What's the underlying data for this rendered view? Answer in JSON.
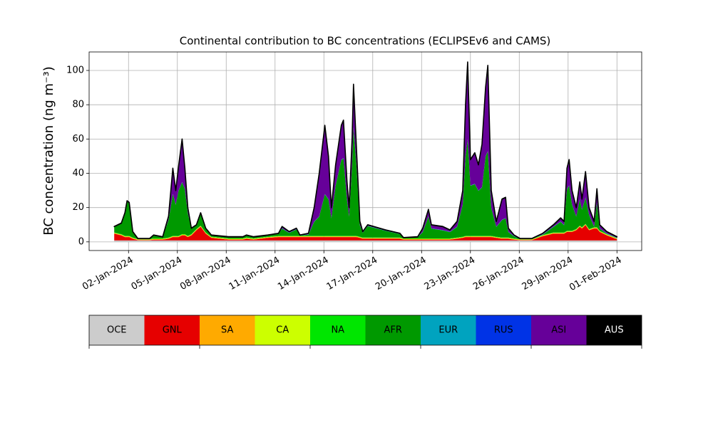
{
  "chart_data": {
    "type": "stacked_area",
    "title": "Continental contribution to BC concentrations (ECLIPSEv6 and CAMS)",
    "y_label": "BC concentration (ng m⁻³)",
    "grid": true,
    "xlim": [
      -0.42,
      33.52
    ],
    "ylim": [
      -5.05,
      110.8
    ],
    "yticks": [
      0,
      20,
      40,
      60,
      80,
      100
    ],
    "xticks": [
      {
        "value": 2,
        "label": "02-Jan-2024"
      },
      {
        "value": 5,
        "label": "05-Jan-2024"
      },
      {
        "value": 8,
        "label": "08-Jan-2024"
      },
      {
        "value": 11,
        "label": "11-Jan-2024"
      },
      {
        "value": 14,
        "label": "14-Jan-2024"
      },
      {
        "value": 17,
        "label": "17-Jan-2024"
      },
      {
        "value": 20,
        "label": "20-Jan-2024"
      },
      {
        "value": 23,
        "label": "23-Jan-2024"
      },
      {
        "value": 26,
        "label": "26-Jan-2024"
      },
      {
        "value": 29,
        "label": "29-Jan-2024"
      },
      {
        "value": 32,
        "label": "01-Feb-2024"
      }
    ],
    "x": [
      1.12,
      1.56,
      1.78,
      1.91,
      2.04,
      2.26,
      2.57,
      3.3,
      3.54,
      4.1,
      4.46,
      4.72,
      4.9,
      5.07,
      5.29,
      5.46,
      5.64,
      5.86,
      6.17,
      6.43,
      6.74,
      7.09,
      8.14,
      9.02,
      9.24,
      9.68,
      10.55,
      11.21,
      11.43,
      11.87,
      12.31,
      12.53,
      13.05,
      13.4,
      13.71,
      14.06,
      14.28,
      14.46,
      14.72,
      15.07,
      15.2,
      15.42,
      15.55,
      15.73,
      15.82,
      16.0,
      16.21,
      16.39,
      16.69,
      17.79,
      18.67,
      18.89,
      19.76,
      20.07,
      20.42,
      20.6,
      21.3,
      21.74,
      22.18,
      22.53,
      22.7,
      22.83,
      23.0,
      23.27,
      23.49,
      23.71,
      23.93,
      24.07,
      24.28,
      24.59,
      24.94,
      25.16,
      25.33,
      25.68,
      26.04,
      26.78,
      27.44,
      28.1,
      28.54,
      28.75,
      28.93,
      29.06,
      29.24,
      29.5,
      29.72,
      29.85,
      30.07,
      30.29,
      30.6,
      30.77,
      30.94,
      31.38,
      32
    ],
    "series": [
      {
        "name": "OCE",
        "color": "#cccccc",
        "values": [
          0.8,
          0.8,
          0.8,
          0.8,
          0.8,
          0.8,
          0.8,
          0.8,
          0.8,
          0.8,
          0.8,
          0.8,
          0.8,
          0.8,
          0.8,
          0.8,
          0.8,
          0.8,
          0.8,
          0.8,
          0.8,
          0.8,
          0.8,
          0.8,
          0.8,
          0.8,
          0.8,
          0.8,
          0.8,
          0.8,
          0.8,
          0.8,
          0.8,
          0.8,
          0.8,
          0.8,
          0.8,
          0.8,
          0.8,
          0.8,
          0.8,
          0.8,
          0.8,
          0.8,
          0.8,
          0.8,
          0.8,
          0.8,
          0.8,
          0.8,
          0.8,
          0.8,
          0.8,
          0.8,
          0.8,
          0.8,
          0.8,
          0.8,
          0.8,
          0.8,
          0.8,
          0.8,
          0.8,
          0.8,
          0.8,
          0.8,
          0.8,
          0.8,
          0.8,
          0.8,
          0.8,
          0.8,
          0.8,
          0.8,
          0.8,
          0.8,
          0.8,
          0.8,
          0.8,
          0.8,
          0.8,
          0.8,
          0.8,
          0.8,
          0.8,
          0.8,
          0.8,
          0.8,
          0.8,
          0.8,
          0.8,
          0.8,
          0.8
        ]
      },
      {
        "name": "GNL",
        "color": "#e60000",
        "values": [
          4,
          3,
          2,
          2,
          2,
          1,
          0.2,
          0.2,
          0.5,
          0.5,
          1,
          2,
          2,
          2,
          3,
          3,
          2,
          3,
          6,
          8,
          4,
          1.5,
          0.5,
          0.5,
          1,
          0.5,
          1.5,
          2,
          2,
          2,
          2,
          2,
          2,
          2,
          2,
          2,
          2,
          2,
          2,
          2,
          2,
          2,
          2,
          2,
          2,
          2,
          1.5,
          1,
          1,
          1,
          1,
          0.5,
          0.5,
          0.5,
          0.5,
          0.5,
          0.5,
          0.5,
          1,
          1.5,
          2,
          2,
          2,
          2,
          2,
          2,
          2,
          2,
          2,
          1.5,
          1,
          1,
          1,
          0.5,
          0.2,
          0.2,
          2.5,
          4,
          4,
          4,
          5,
          5,
          5,
          6,
          8,
          7,
          9,
          6,
          7,
          7,
          5,
          3,
          0.7
        ]
      },
      {
        "name": "SA",
        "color": "#ffaa00",
        "values": [
          0.3,
          0.3,
          0.3,
          0.3,
          0.3,
          0.3,
          0.3,
          0.3,
          0.3,
          0.3,
          0.3,
          0.3,
          0.3,
          0.3,
          0.3,
          0.3,
          0.3,
          0.3,
          0.3,
          0.3,
          0.3,
          0.3,
          0.3,
          0.3,
          0.3,
          0.3,
          0.3,
          0.3,
          0.3,
          0.3,
          0.3,
          0.3,
          0.3,
          0.3,
          0.3,
          0.3,
          0.3,
          0.3,
          0.3,
          0.3,
          0.3,
          0.3,
          0.3,
          0.3,
          0.3,
          0.3,
          0.3,
          0.3,
          0.3,
          0.3,
          0.3,
          0.3,
          0.3,
          0.3,
          0.3,
          0.3,
          0.3,
          0.3,
          0.3,
          0.3,
          0.3,
          0.3,
          0.3,
          0.3,
          0.3,
          0.3,
          0.3,
          0.3,
          0.3,
          0.3,
          0.3,
          0.3,
          0.3,
          0.3,
          0.3,
          0.3,
          0.3,
          0.3,
          0.3,
          0.3,
          0.3,
          0.3,
          0.3,
          0.3,
          0.3,
          0.3,
          0.3,
          0.3,
          0.3,
          0.3,
          0.3,
          0.3,
          0.3
        ]
      },
      {
        "name": "CA",
        "color": "#ccff00",
        "values": [
          0.2,
          0.2,
          0.2,
          0.2,
          0.2,
          0.2,
          0.2,
          0.2,
          0.2,
          0.2,
          0.2,
          0.2,
          0.2,
          0.2,
          0.2,
          0.2,
          0.2,
          0.2,
          0.2,
          0.2,
          0.2,
          0.2,
          0.2,
          0.2,
          0.2,
          0.2,
          0.2,
          0.2,
          0.2,
          0.2,
          0.2,
          0.2,
          0.2,
          0.2,
          0.2,
          0.2,
          0.2,
          0.2,
          0.2,
          0.2,
          0.2,
          0.2,
          0.2,
          0.2,
          0.2,
          0.2,
          0.2,
          0.2,
          0.2,
          0.2,
          0.2,
          0.2,
          0.2,
          0.2,
          0.2,
          0.2,
          0.2,
          0.2,
          0.2,
          0.2,
          0.2,
          0.2,
          0.2,
          0.2,
          0.2,
          0.2,
          0.2,
          0.2,
          0.2,
          0.2,
          0.2,
          0.2,
          0.2,
          0.2,
          0.2,
          0.2,
          0.2,
          0.2,
          0.2,
          0.2,
          0.2,
          0.2,
          0.2,
          0.2,
          0.2,
          0.2,
          0.2,
          0.2,
          0.2,
          0.2,
          0.2,
          0.2,
          0.2
        ]
      },
      {
        "name": "NA",
        "color": "#00e600",
        "values": [
          0.2,
          0.2,
          0.2,
          0.2,
          0.2,
          0.2,
          0.2,
          0.2,
          0.2,
          0.2,
          0.2,
          0.2,
          0.2,
          0.2,
          0.2,
          0.2,
          0.2,
          0.2,
          0.2,
          0.2,
          0.2,
          0.2,
          0.2,
          0.2,
          0.2,
          0.2,
          0.2,
          0.2,
          0.2,
          0.2,
          0.2,
          0.2,
          0.2,
          0.2,
          0.2,
          0.2,
          0.2,
          0.2,
          0.2,
          0.2,
          0.2,
          0.2,
          0.2,
          0.2,
          0.2,
          0.2,
          0.2,
          0.2,
          0.2,
          0.2,
          0.2,
          0.2,
          0.2,
          0.2,
          0.2,
          0.2,
          0.2,
          0.2,
          0.2,
          0.2,
          0.2,
          0.2,
          0.2,
          0.2,
          0.2,
          0.2,
          0.2,
          0.2,
          0.2,
          0.2,
          0.2,
          0.2,
          0.2,
          0.2,
          0.2,
          0.2,
          0.2,
          0.2,
          0.2,
          0.2,
          0.2,
          0.2,
          0.2,
          0.2,
          0.2,
          0.2,
          0.2,
          0.2,
          0.2,
          0.2,
          0.2,
          0.2,
          0.2
        ]
      },
      {
        "name": "AFR",
        "color": "#009900",
        "values": [
          3.2,
          6.2,
          13.2,
          20.2,
          19.2,
          3.2,
          0,
          0,
          1.7,
          0.7,
          10.2,
          24.2,
          18.2,
          26.2,
          30.2,
          26.2,
          13.2,
          3.2,
          2.2,
          7.2,
          2.2,
          0.7,
          0.7,
          0.7,
          1.2,
          0.7,
          0.7,
          1.2,
          4.2,
          1.7,
          3.7,
          0.2,
          0.7,
          8.2,
          11.2,
          24.2,
          21.2,
          10.2,
          29.2,
          44.2,
          45.2,
          21.2,
          11.2,
          41.2,
          63.2,
          41.2,
          6.7,
          2.7,
          6.7,
          3.9,
          2.0,
          0.2,
          0.7,
          3.7,
          12.7,
          5.7,
          4.7,
          3.7,
          6.2,
          18.7,
          46.2,
          56.2,
          29.2,
          30.2,
          26.2,
          28.2,
          46.2,
          49.2,
          16.2,
          5.7,
          10.2,
          11.2,
          3.2,
          1.2,
          0,
          0,
          0.2,
          3.2,
          6.2,
          4.2,
          24.2,
          26.2,
          15.2,
          7.2,
          15.2,
          10.2,
          15.2,
          8.2,
          0.2,
          14.2,
          1.2,
          0.2,
          0
        ]
      },
      {
        "name": "EUR",
        "color": "#00a3bf",
        "values": [
          0.1,
          0.1,
          0.1,
          0.1,
          0.1,
          0.1,
          0.1,
          0.1,
          0.1,
          0.1,
          0.1,
          0.1,
          0.1,
          0.1,
          0.1,
          0.1,
          0.1,
          0.1,
          0.1,
          0.1,
          0.1,
          0.1,
          0.1,
          0.1,
          0.1,
          0.1,
          0.1,
          0.1,
          0.1,
          0.1,
          0.1,
          0.1,
          0.1,
          0.1,
          0.1,
          0.1,
          0.1,
          0.1,
          0.1,
          0.1,
          0.1,
          0.1,
          0.1,
          0.1,
          0.1,
          0.1,
          0.1,
          0.1,
          0.1,
          0.1,
          0.1,
          0.1,
          0.1,
          0.1,
          0.1,
          0.1,
          0.1,
          0.1,
          0.1,
          0.1,
          0.1,
          0.1,
          0.1,
          0.1,
          0.1,
          0.1,
          0.1,
          0.1,
          0.1,
          0.1,
          0.1,
          0.1,
          0.1,
          0.1,
          0.1,
          0.1,
          0.1,
          0.1,
          0.1,
          0.1,
          0.1,
          0.1,
          0.1,
          0.1,
          0.1,
          0.1,
          0.1,
          0.1,
          0.1,
          0.1,
          0.1,
          0.1,
          0.1
        ]
      },
      {
        "name": "RUS",
        "color": "#0033e6",
        "values": [
          0.1,
          0.1,
          0.1,
          0.1,
          0.1,
          0.1,
          0.1,
          0.1,
          0.1,
          0.1,
          0.1,
          0.1,
          0.1,
          0.1,
          0.1,
          0.1,
          0.1,
          0.1,
          0.1,
          0.1,
          0.1,
          0.1,
          0.1,
          0.1,
          0.1,
          0.1,
          0.1,
          0.1,
          0.1,
          0.1,
          0.1,
          0.1,
          0.1,
          0.1,
          0.1,
          0.1,
          0.1,
          0.1,
          0.1,
          0.1,
          0.1,
          0.1,
          0.1,
          0.1,
          0.1,
          0.1,
          0.1,
          0.1,
          0.1,
          0.1,
          0.1,
          0.1,
          0.1,
          0.1,
          0.1,
          0.1,
          0.1,
          0.1,
          0.1,
          0.1,
          0.1,
          0.1,
          0.1,
          0.1,
          0.1,
          0.1,
          0.1,
          0.1,
          0.1,
          0.1,
          0.1,
          0.1,
          0.1,
          0.1,
          0.1,
          0.1,
          0.1,
          0.1,
          0.1,
          0.1,
          0.1,
          0.1,
          0.1,
          0.1,
          0.1,
          0.1,
          0.1,
          0.1,
          0.1,
          0.1,
          0.1,
          0.1,
          0.1
        ]
      },
      {
        "name": "ASI",
        "color": "#660099",
        "values": [
          0,
          0,
          0,
          0,
          0,
          0,
          0,
          0,
          0,
          0,
          2,
          15,
          8,
          14,
          25,
          12,
          3,
          0,
          0,
          0,
          0,
          0,
          0,
          0,
          0,
          0,
          0,
          0,
          1,
          0.5,
          0.5,
          0,
          0.5,
          8,
          25,
          40,
          25,
          6,
          12,
          20,
          22,
          10,
          5,
          15,
          25,
          10,
          2,
          0.5,
          0.5,
          0.3,
          0.2,
          0,
          0,
          2,
          4,
          2,
          2,
          1,
          3,
          8,
          30,
          45,
          15,
          18,
          15,
          25,
          40,
          50,
          10,
          3,
          12,
          12,
          2,
          0.5,
          0,
          0,
          0.5,
          1,
          2,
          2,
          12,
          15,
          8,
          5,
          10,
          6,
          15,
          4,
          3,
          8,
          2,
          1,
          0.5
        ]
      },
      {
        "name": "AUS",
        "color": "#000000",
        "values": [
          0.1,
          0.1,
          0.1,
          0.1,
          0.1,
          0.1,
          0.1,
          0.1,
          0.1,
          0.1,
          0.1,
          0.1,
          0.1,
          0.1,
          0.1,
          0.1,
          0.1,
          0.1,
          0.1,
          0.1,
          0.1,
          0.1,
          0.1,
          0.1,
          0.1,
          0.1,
          0.1,
          0.1,
          0.1,
          0.1,
          0.1,
          0.1,
          0.1,
          0.1,
          0.1,
          0.1,
          0.1,
          0.1,
          0.1,
          0.1,
          0.1,
          0.1,
          0.1,
          0.1,
          0.1,
          0.1,
          0.1,
          0.1,
          0.1,
          0.1,
          0.1,
          0.1,
          0.1,
          0.1,
          0.1,
          0.1,
          0.1,
          0.1,
          0.1,
          0.1,
          0.1,
          0.1,
          0.1,
          0.1,
          0.1,
          0.1,
          0.1,
          0.1,
          0.1,
          0.1,
          0.1,
          0.1,
          0.1,
          0.1,
          0.1,
          0.1,
          0.1,
          0.1,
          0.1,
          0.1,
          0.1,
          0.1,
          0.1,
          0.1,
          0.1,
          0.1,
          0.1,
          0.1,
          0.1,
          0.1,
          0.1,
          0.1,
          0.1
        ]
      }
    ]
  }
}
